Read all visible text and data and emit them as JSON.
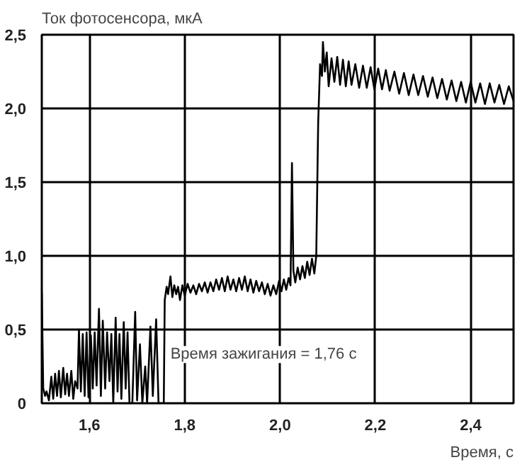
{
  "chart_data": {
    "type": "line",
    "ylabel": "Ток фотосенсора, мкА",
    "xlabel": "Время, с",
    "annotations": [
      {
        "text": "Время зажигания = 1,76 с",
        "x": 1.77,
        "y": 0.33
      }
    ],
    "xlim": [
      1.5,
      2.49
    ],
    "ylim": [
      0,
      2.5
    ],
    "xticks": [
      {
        "value": 1.6,
        "label": "1,6"
      },
      {
        "value": 1.8,
        "label": "1,8"
      },
      {
        "value": 2.0,
        "label": "2,0"
      },
      {
        "value": 2.2,
        "label": "2,2"
      },
      {
        "value": 2.4,
        "label": "2,4"
      }
    ],
    "yticks": [
      0,
      {
        "value": 0.5,
        "label": "0,5"
      },
      {
        "value": 1.0,
        "label": "1,0"
      },
      {
        "value": 1.5,
        "label": "1,5"
      },
      {
        "value": 2.0,
        "label": "2,0"
      },
      {
        "value": 2.5,
        "label": "2,5"
      }
    ],
    "grid": true,
    "marker": "none",
    "line_style": "solid",
    "x": [
      1.5,
      1.503,
      1.507,
      1.51,
      1.515,
      1.52,
      1.524,
      1.528,
      1.532,
      1.536,
      1.54,
      1.545,
      1.549,
      1.553,
      1.557,
      1.562,
      1.566,
      1.57,
      1.575,
      1.578,
      1.582,
      1.586,
      1.59,
      1.594,
      1.598,
      1.603,
      1.607,
      1.611,
      1.615,
      1.62,
      1.624,
      1.628,
      1.633,
      1.637,
      1.642,
      1.646,
      1.65,
      1.655,
      1.659,
      1.663,
      1.667,
      1.672,
      1.676,
      1.68,
      1.684,
      1.69,
      1.696,
      1.7,
      1.706,
      1.711,
      1.717,
      1.721,
      1.728,
      1.733,
      1.74,
      1.745,
      1.752,
      1.756,
      1.758,
      1.762,
      1.765,
      1.77,
      1.774,
      1.778,
      1.782,
      1.786,
      1.79,
      1.795,
      1.8,
      1.806,
      1.812,
      1.818,
      1.824,
      1.83,
      1.836,
      1.842,
      1.848,
      1.854,
      1.86,
      1.866,
      1.872,
      1.878,
      1.884,
      1.89,
      1.896,
      1.902,
      1.908,
      1.914,
      1.92,
      1.926,
      1.932,
      1.938,
      1.944,
      1.95,
      1.956,
      1.962,
      1.968,
      1.974,
      1.98,
      1.986,
      1.992,
      1.998,
      2.003,
      2.008,
      2.013,
      2.018,
      2.022,
      2.025,
      2.028,
      2.032,
      2.037,
      2.042,
      2.047,
      2.052,
      2.057,
      2.062,
      2.067,
      2.072,
      2.076,
      2.08,
      2.084,
      2.088,
      2.09,
      2.094,
      2.098,
      2.102,
      2.108,
      2.114,
      2.12,
      2.126,
      2.132,
      2.138,
      2.144,
      2.15,
      2.158,
      2.166,
      2.174,
      2.182,
      2.19,
      2.198,
      2.206,
      2.214,
      2.222,
      2.23,
      2.24,
      2.25,
      2.26,
      2.27,
      2.28,
      2.29,
      2.3,
      2.31,
      2.32,
      2.33,
      2.34,
      2.35,
      2.36,
      2.37,
      2.38,
      2.39,
      2.4,
      2.41,
      2.42,
      2.43,
      2.44,
      2.45,
      2.46,
      2.47,
      2.48,
      2.49
    ],
    "series": [
      {
        "color": "#000000",
        "values": [
          0.75,
          0.1,
          0.05,
          0.08,
          0.02,
          0.18,
          0.03,
          0.2,
          0.05,
          0.22,
          0.04,
          0.24,
          0.06,
          0.2,
          0.05,
          0.22,
          0.03,
          0.15,
          0.1,
          0.5,
          0.08,
          0.47,
          0.05,
          0.48,
          0.04,
          0.46,
          0.1,
          0.48,
          0.12,
          0.64,
          0.05,
          0.56,
          0.1,
          0.48,
          0.15,
          0.47,
          0.0,
          0.58,
          0.08,
          0.47,
          0.03,
          0.55,
          0.1,
          0.48,
          0.0,
          0.0,
          0.62,
          0.02,
          0.4,
          0.0,
          0.25,
          0.0,
          0.52,
          0.05,
          0.57,
          0.0,
          0.0,
          0.0,
          0.7,
          0.79,
          0.74,
          0.86,
          0.72,
          0.8,
          0.74,
          0.79,
          0.7,
          0.8,
          0.73,
          0.81,
          0.75,
          0.8,
          0.74,
          0.81,
          0.76,
          0.82,
          0.75,
          0.82,
          0.76,
          0.84,
          0.77,
          0.85,
          0.76,
          0.86,
          0.77,
          0.84,
          0.76,
          0.85,
          0.77,
          0.86,
          0.76,
          0.84,
          0.75,
          0.83,
          0.76,
          0.82,
          0.74,
          0.81,
          0.73,
          0.8,
          0.74,
          0.83,
          0.76,
          0.84,
          0.77,
          0.85,
          0.8,
          1.63,
          0.9,
          0.82,
          0.92,
          0.84,
          0.93,
          0.85,
          0.96,
          0.87,
          0.98,
          0.88,
          1.0,
          1.9,
          2.3,
          2.22,
          2.45,
          2.25,
          2.38,
          2.15,
          2.34,
          2.18,
          2.35,
          2.16,
          2.33,
          2.15,
          2.32,
          2.16,
          2.3,
          2.14,
          2.29,
          2.14,
          2.28,
          2.13,
          2.27,
          2.13,
          2.26,
          2.12,
          2.25,
          2.1,
          2.24,
          2.09,
          2.23,
          2.09,
          2.22,
          2.08,
          2.21,
          2.07,
          2.2,
          2.06,
          2.19,
          2.05,
          2.18,
          2.04,
          2.18,
          2.04,
          2.17,
          2.03,
          2.17,
          2.04,
          2.16,
          2.03,
          2.15,
          2.05
        ]
      }
    ]
  }
}
